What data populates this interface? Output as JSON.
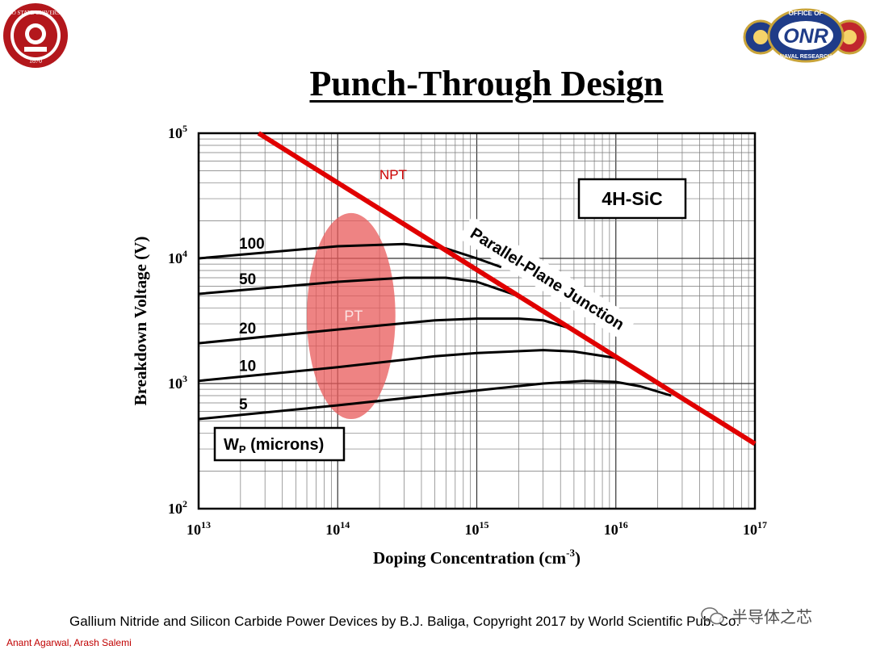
{
  "title": "Punch-Through Design",
  "caption": "Gallium Nitride and Silicon Carbide Power Devices by B.J. Baliga, Copyright 2017 by World Scientific Pub. Co.",
  "authors": "Anant Agarwal, Arash Salemi",
  "watermark": "半导体之芯",
  "logos": {
    "left": "university-seal",
    "right": "onr-logo",
    "onr_text": "ONR"
  },
  "colors": {
    "limit_line": "#e00000",
    "pt_ellipse": "#e85a5a",
    "npt_label": "#cc0000"
  },
  "chart_data": {
    "type": "line",
    "x_scale": "log",
    "y_scale": "log",
    "xlim": [
      10000000000000.0,
      1e+17
    ],
    "ylim": [
      100,
      100000
    ],
    "grid": true,
    "xlabel": "Doping Concentration   (cm",
    "xlabel_sup": "-3",
    "xlabel_end": ")",
    "ylabel": "Breakdown  Voltage  (V)",
    "x_ticks": [
      {
        "value": 10000000000000.0,
        "base": "10",
        "exp": "13"
      },
      {
        "value": 100000000000000.0,
        "base": "10",
        "exp": "14"
      },
      {
        "value": 1000000000000000.0,
        "base": "10",
        "exp": "15"
      },
      {
        "value": 1e+16,
        "base": "10",
        "exp": "16"
      },
      {
        "value": 1e+17,
        "base": "10",
        "exp": "17"
      }
    ],
    "y_ticks": [
      {
        "value": 100,
        "base": "10",
        "exp": "2"
      },
      {
        "value": 1000,
        "base": "10",
        "exp": "3"
      },
      {
        "value": 10000,
        "base": "10",
        "exp": "4"
      },
      {
        "value": 100000,
        "base": "10",
        "exp": "5"
      }
    ],
    "limit_line": {
      "name": "NPT",
      "label_rotated": "Parallel-Plane Junction",
      "points": [
        [
          27000000000000.0,
          100000
        ],
        [
          1e+17,
          330
        ]
      ]
    },
    "series": [
      {
        "name": "100",
        "points": [
          [
            10000000000000.0,
            10000
          ],
          [
            100000000000000.0,
            12500
          ],
          [
            300000000000000.0,
            13000
          ],
          [
            600000000000000.0,
            12000
          ],
          [
            1000000000000000.0,
            10000
          ],
          [
            1500000000000000.0,
            8500
          ]
        ]
      },
      {
        "name": "50",
        "points": [
          [
            10000000000000.0,
            5200
          ],
          [
            100000000000000.0,
            6500
          ],
          [
            300000000000000.0,
            7000
          ],
          [
            600000000000000.0,
            7000
          ],
          [
            1000000000000000.0,
            6500
          ],
          [
            2000000000000000.0,
            5000
          ]
        ]
      },
      {
        "name": "20",
        "points": [
          [
            10000000000000.0,
            2100
          ],
          [
            100000000000000.0,
            2700
          ],
          [
            500000000000000.0,
            3200
          ],
          [
            1000000000000000.0,
            3300
          ],
          [
            2000000000000000.0,
            3300
          ],
          [
            3000000000000000.0,
            3200
          ],
          [
            5000000000000000.0,
            2700
          ]
        ]
      },
      {
        "name": "10",
        "points": [
          [
            10000000000000.0,
            1050
          ],
          [
            100000000000000.0,
            1350
          ],
          [
            500000000000000.0,
            1650
          ],
          [
            1000000000000000.0,
            1750
          ],
          [
            3000000000000000.0,
            1850
          ],
          [
            5000000000000000.0,
            1800
          ],
          [
            1e+16,
            1600
          ]
        ]
      },
      {
        "name": "5",
        "points": [
          [
            10000000000000.0,
            520
          ],
          [
            100000000000000.0,
            670
          ],
          [
            1000000000000000.0,
            880
          ],
          [
            3000000000000000.0,
            1000
          ],
          [
            6000000000000000.0,
            1050
          ],
          [
            1e+16,
            1030
          ],
          [
            1.5e+16,
            950
          ],
          [
            2.5e+16,
            800
          ]
        ]
      }
    ],
    "pt_region": {
      "label": "PT",
      "center": [
        130000000000000.0,
        3500
      ],
      "x_range": [
        60000000000000.0,
        260000000000000.0
      ],
      "y_range": [
        520,
        23000
      ]
    },
    "legend_box": {
      "text": "W",
      "sub": "P",
      "rest": " (microns)"
    },
    "material_box": "4H-SiC"
  }
}
